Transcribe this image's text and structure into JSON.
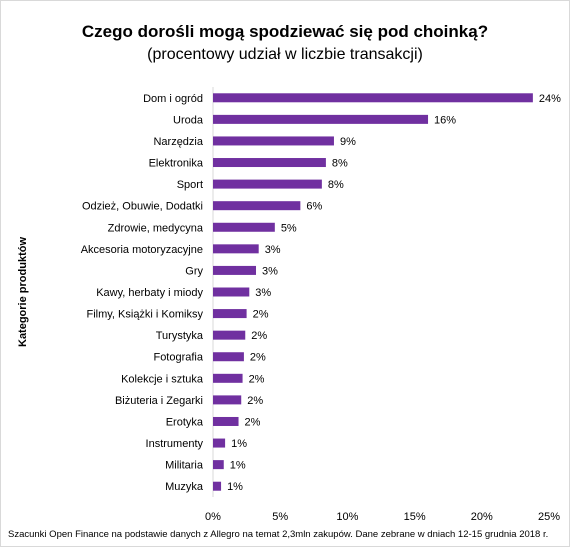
{
  "chart_data": {
    "type": "bar",
    "orientation": "horizontal",
    "title": "Czego dorośli mogą spodziewać się pod choinką?",
    "subtitle": "(procentowy udział w liczbie transakcji)",
    "ylabel": "Kategorie produktów",
    "xlabel": "",
    "footnote": "Szacunki Open Finance na podstawie danych z Allegro na temat 2,3mln zakupów. Dane zebrane w dniach 12-15 grudnia 2018 r.",
    "categories": [
      "Dom i ogród",
      "Uroda",
      "Narzędzia",
      "Elektronika",
      "Sport",
      "Odzież, Obuwie, Dodatki",
      "Zdrowie, medycyna",
      "Akcesoria motoryzacyjne",
      "Gry",
      "Kawy, herbaty i miody",
      "Filmy, Książki i Komiksy",
      "Turystyka",
      "Fotografia",
      "Kolekcje i sztuka",
      "Biżuteria i Zegarki",
      "Erotyka",
      "Instrumenty",
      "Militaria",
      "Muzyka"
    ],
    "values": [
      23.8,
      16.0,
      9.0,
      8.4,
      8.1,
      6.5,
      4.6,
      3.4,
      3.2,
      2.7,
      2.5,
      2.4,
      2.3,
      2.2,
      2.1,
      1.9,
      0.9,
      0.8,
      0.6
    ],
    "data_labels": [
      "24%",
      "16%",
      "9%",
      "8%",
      "8%",
      "6%",
      "5%",
      "3%",
      "3%",
      "3%",
      "2%",
      "2%",
      "2%",
      "2%",
      "2%",
      "2%",
      "1%",
      "1%",
      "1%"
    ],
    "xlim": [
      0,
      25
    ],
    "xticks": [
      0,
      5,
      10,
      15,
      20,
      25
    ],
    "xtick_labels": [
      "0%",
      "5%",
      "10%",
      "15%",
      "20%",
      "25%"
    ],
    "grid": false,
    "legend": false,
    "bar_color": "#7030a0"
  }
}
